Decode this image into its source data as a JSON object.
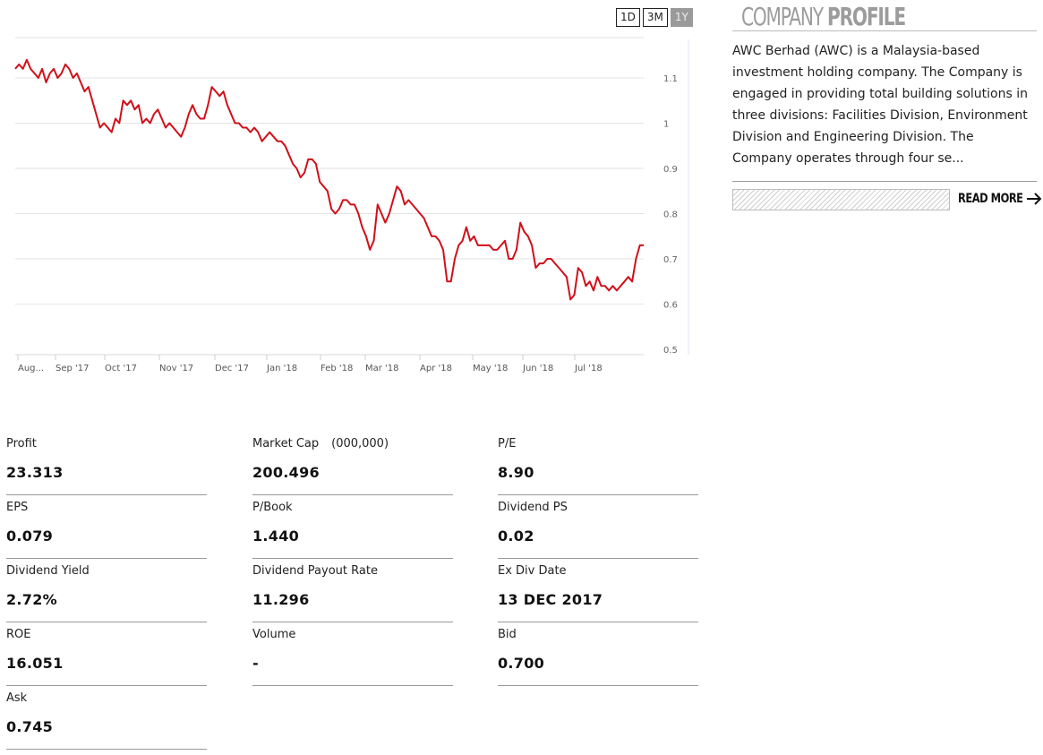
{
  "range_buttons": [
    {
      "label": "1D",
      "active": false
    },
    {
      "label": "3M",
      "active": false
    },
    {
      "label": "1Y",
      "active": true
    }
  ],
  "chart_data": {
    "type": "line",
    "ylim": [
      0.5,
      1.15
    ],
    "y_ticks": [
      "1.1",
      "1",
      "0.9",
      "0.8",
      "0.7",
      "0.6",
      "0.5"
    ],
    "x_ticks": [
      "Aug...",
      "Sep '17",
      "Oct '17",
      "Nov '17",
      "Dec '17",
      "Jan '18",
      "Feb '18",
      "Mar '18",
      "Apr '18",
      "May '18",
      "Jun '18",
      "Jul '18"
    ],
    "grid": true,
    "line_color": "#d0101a",
    "series": [
      {
        "values": [
          1.12,
          1.13,
          1.12,
          1.14,
          1.12,
          1.11,
          1.1,
          1.12,
          1.09,
          1.11,
          1.12,
          1.1,
          1.11,
          1.13,
          1.12,
          1.1,
          1.11,
          1.09,
          1.07,
          1.08,
          1.05,
          1.02,
          0.99,
          1.0,
          0.99,
          0.98,
          1.01,
          1.0,
          1.05,
          1.04,
          1.05,
          1.03,
          1.04,
          1.0,
          1.01,
          1.0,
          1.02,
          1.03,
          1.01,
          0.99,
          1.0,
          0.99,
          0.98,
          0.97,
          0.99,
          1.02,
          1.04,
          1.02,
          1.01,
          1.01,
          1.04,
          1.08,
          1.07,
          1.06,
          1.07,
          1.04,
          1.02,
          1.0,
          1.0,
          0.99,
          0.99,
          0.98,
          0.99,
          0.98,
          0.96,
          0.97,
          0.98,
          0.97,
          0.96,
          0.96,
          0.95,
          0.93,
          0.91,
          0.9,
          0.88,
          0.89,
          0.92,
          0.92,
          0.91,
          0.87,
          0.86,
          0.85,
          0.81,
          0.8,
          0.81,
          0.83,
          0.83,
          0.82,
          0.82,
          0.8,
          0.77,
          0.75,
          0.72,
          0.74,
          0.82,
          0.8,
          0.78,
          0.8,
          0.83,
          0.86,
          0.85,
          0.82,
          0.83,
          0.82,
          0.81,
          0.8,
          0.79,
          0.77,
          0.75,
          0.75,
          0.74,
          0.72,
          0.65,
          0.65,
          0.7,
          0.73,
          0.74,
          0.77,
          0.74,
          0.75,
          0.73,
          0.73,
          0.73,
          0.73,
          0.72,
          0.72,
          0.73,
          0.74,
          0.7,
          0.7,
          0.72,
          0.78,
          0.76,
          0.75,
          0.73,
          0.68,
          0.69,
          0.69,
          0.7,
          0.7,
          0.69,
          0.68,
          0.67,
          0.66,
          0.61,
          0.62,
          0.68,
          0.67,
          0.64,
          0.65,
          0.63,
          0.66,
          0.64,
          0.64,
          0.63,
          0.64,
          0.63,
          0.64,
          0.65,
          0.66,
          0.65,
          0.7,
          0.73,
          0.73
        ]
      }
    ]
  },
  "profile": {
    "title_light": "COMPANY",
    "title_bold": "PROFILE",
    "description": "AWC Berhad (AWC) is a Malaysia-based investment holding company. The Company is engaged in providing total building solutions in three divisions: Facilities Division, Environment Division and Engineering Division. The Company operates through four se...",
    "read_more": "READ MORE",
    "arrow_icon": "arrow-right-icon"
  },
  "stats": [
    {
      "label": "Profit",
      "value": "23.313"
    },
    {
      "label": "Market Cap",
      "unit": "(000,000)",
      "value": "200.496"
    },
    {
      "label": "P/E",
      "value": "8.90"
    },
    {
      "label": "EPS",
      "value": "0.079"
    },
    {
      "label": "P/Book",
      "value": "1.440"
    },
    {
      "label": "Dividend PS",
      "value": "0.02"
    },
    {
      "label": "Dividend Yield",
      "value": "2.72%"
    },
    {
      "label": "Dividend Payout Rate",
      "value": "11.296"
    },
    {
      "label": "Ex Div Date",
      "value": "13 DEC 2017"
    },
    {
      "label": "ROE",
      "value": "16.051"
    },
    {
      "label": "Volume",
      "value": "-"
    },
    {
      "label": "Bid",
      "value": "0.700"
    },
    {
      "label": "Ask",
      "value": "0.745"
    }
  ]
}
